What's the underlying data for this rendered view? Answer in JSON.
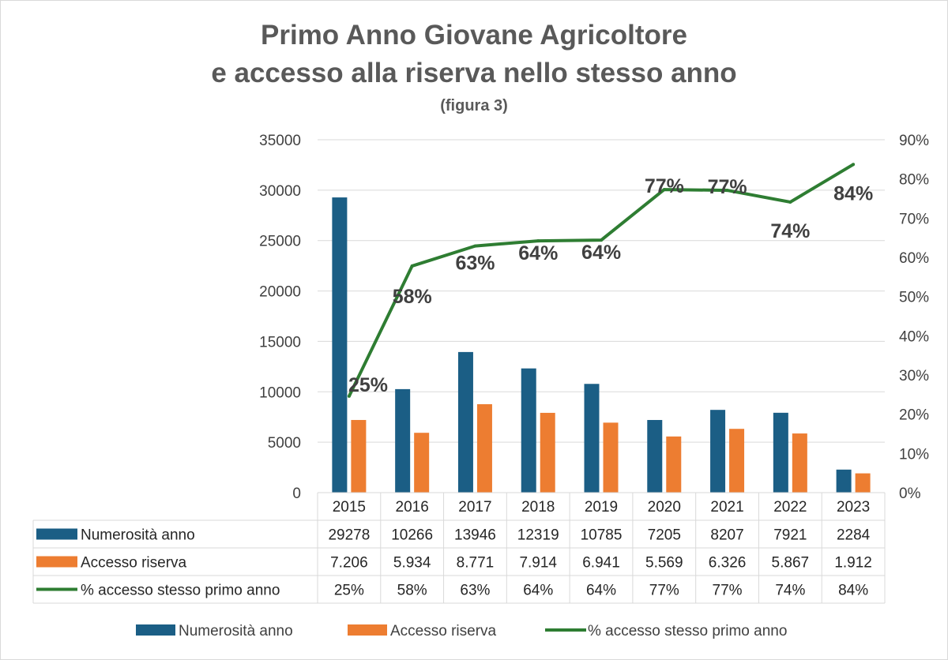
{
  "chart_data": {
    "type": "bar",
    "title_line1": "Primo Anno Giovane Agricoltore",
    "title_line2": "e accesso alla riserva nello stesso anno",
    "subtitle": "(figura 3)",
    "categories": [
      "2015",
      "2016",
      "2017",
      "2018",
      "2019",
      "2020",
      "2021",
      "2022",
      "2023"
    ],
    "y_left": {
      "ticks": [
        "0",
        "5000",
        "10000",
        "15000",
        "20000",
        "25000",
        "30000",
        "35000"
      ],
      "range": [
        0,
        35000
      ]
    },
    "y_right": {
      "ticks": [
        "0%",
        "10%",
        "20%",
        "30%",
        "40%",
        "50%",
        "60%",
        "70%",
        "80%",
        "90%"
      ],
      "range": [
        0,
        90
      ]
    },
    "grid": true,
    "legend_position": "bottom",
    "series": [
      {
        "name": "Numerosità anno",
        "kind": "bar",
        "axis": "left",
        "color": "#1b5e85",
        "values": [
          29278,
          10266,
          13946,
          12319,
          10785,
          7205,
          8207,
          7921,
          2284
        ],
        "table_labels": [
          "29278",
          "10266",
          "13946",
          "12319",
          "10785",
          "7205",
          "8207",
          "7921",
          "2284"
        ]
      },
      {
        "name": "Accesso riserva",
        "kind": "bar",
        "axis": "left",
        "color": "#ed7d31",
        "values": [
          7206,
          5934,
          8771,
          7914,
          6941,
          5569,
          6326,
          5867,
          1912
        ],
        "table_labels": [
          "7.206",
          "5.934",
          "8.771",
          "7.914",
          "6.941",
          "5.569",
          "6.326",
          "5.867",
          "1.912"
        ]
      },
      {
        "name": "% accesso  stesso primo anno",
        "kind": "line",
        "axis": "right",
        "color": "#2e7d32",
        "values": [
          24.6,
          57.8,
          62.9,
          64.2,
          64.4,
          77.3,
          77.1,
          74.1,
          83.7
        ],
        "table_labels": [
          "25%",
          "58%",
          "63%",
          "64%",
          "64%",
          "77%",
          "77%",
          "74%",
          "84%"
        ],
        "data_labels": [
          "25%",
          "58%",
          "63%",
          "64%",
          "64%",
          "77%",
          "77%",
          "74%",
          "84%"
        ]
      }
    ]
  }
}
